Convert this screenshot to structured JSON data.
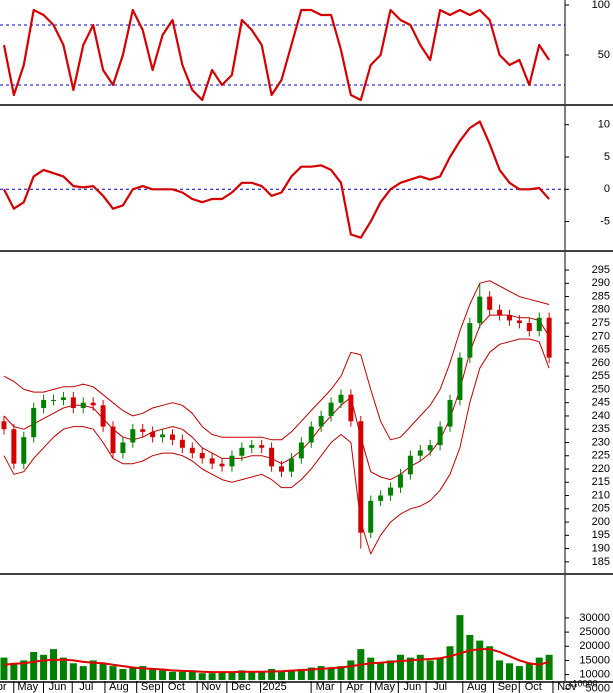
{
  "chart_data": [
    {
      "type": "line",
      "ylim": [
        0,
        100
      ],
      "yticks": [
        50,
        100
      ],
      "xlim": [
        -0.4,
        56.6
      ],
      "ref_lines": [
        80,
        20
      ],
      "ref_color": "#0000cc",
      "series": [
        {
          "color": "#d40000",
          "values": [
            60,
            10,
            40,
            95,
            90,
            80,
            60,
            15,
            60,
            80,
            35,
            20,
            50,
            95,
            75,
            35,
            70,
            85,
            40,
            15,
            5,
            35,
            20,
            30,
            85,
            75,
            60,
            10,
            25,
            60,
            95,
            95,
            90,
            90,
            55,
            10,
            5,
            40,
            50,
            95,
            85,
            80,
            60,
            45,
            95,
            90,
            95,
            90,
            95,
            85,
            50,
            40,
            45,
            20,
            60,
            45
          ]
        }
      ]
    },
    {
      "type": "line",
      "ylim": [
        -9.4,
        12.9
      ],
      "yticks": [
        10,
        5,
        0,
        -5
      ],
      "xlim": [
        -0.4,
        56.6
      ],
      "ref_lines": [
        0
      ],
      "ref_color": "#0000cc",
      "series": [
        {
          "color": "#d40000",
          "values": [
            0,
            -3,
            -2,
            2,
            3,
            2.5,
            2,
            0.5,
            0.3,
            0.5,
            -1,
            -3,
            -2.5,
            0,
            0.5,
            0,
            0,
            0,
            -0.5,
            -1.5,
            -2,
            -1.5,
            -1.5,
            -0.5,
            1,
            1,
            0.5,
            -1,
            -0.5,
            2,
            3.5,
            3.5,
            3.7,
            3,
            1,
            -7,
            -7.5,
            -5,
            -2,
            0,
            1,
            1.5,
            2,
            1.5,
            2,
            5,
            7.5,
            9.5,
            10.5,
            7,
            3,
            1,
            0,
            0,
            0.2,
            -1.5
          ]
        }
      ]
    },
    {
      "type": "candlestick",
      "ylim": [
        180.8,
        301.8
      ],
      "yticks": [
        185,
        190,
        195,
        200,
        205,
        210,
        215,
        220,
        225,
        230,
        235,
        240,
        245,
        250,
        255,
        260,
        265,
        270,
        275,
        280,
        285,
        290,
        295
      ],
      "xlim": [
        -0.4,
        56.6
      ],
      "up_color": "#008000",
      "down_color": "#d40000",
      "band_color": "#c00000",
      "open": [
        238,
        235,
        222,
        232,
        243,
        246,
        246,
        247,
        243,
        245,
        244,
        236,
        226,
        230,
        235,
        234,
        232,
        233,
        231,
        228,
        226,
        224,
        222,
        221,
        225,
        228,
        229,
        228,
        221,
        219,
        224,
        230,
        236,
        240,
        245,
        248,
        238,
        196,
        208,
        210,
        213,
        218,
        225,
        227,
        229,
        236,
        246,
        262,
        275,
        285,
        280,
        278,
        276,
        275,
        272,
        277
      ],
      "high": [
        240,
        237,
        234,
        245,
        248,
        248,
        249,
        249,
        247,
        247,
        246,
        238,
        232,
        237,
        237,
        236,
        235,
        235,
        233,
        230,
        228,
        226,
        224,
        227,
        230,
        231,
        231,
        230,
        223,
        226,
        232,
        238,
        242,
        247,
        250,
        250,
        240,
        210,
        212,
        215,
        220,
        227,
        229,
        231,
        238,
        248,
        264,
        277,
        290,
        287,
        282,
        280,
        278,
        277,
        279,
        279
      ],
      "low": [
        233,
        220,
        220,
        230,
        241,
        244,
        244,
        241,
        241,
        242,
        234,
        224,
        224,
        228,
        232,
        230,
        230,
        229,
        226,
        224,
        222,
        220,
        219,
        219,
        223,
        226,
        226,
        219,
        217,
        217,
        222,
        228,
        234,
        238,
        243,
        236,
        190,
        194,
        206,
        208,
        211,
        216,
        223,
        225,
        227,
        234,
        244,
        260,
        273,
        278,
        276,
        274,
        273,
        270,
        270,
        260
      ],
      "close": [
        235,
        222,
        232,
        243,
        246,
        246,
        247,
        243,
        245,
        244,
        236,
        226,
        230,
        235,
        234,
        232,
        233,
        231,
        228,
        226,
        224,
        222,
        221,
        225,
        228,
        229,
        228,
        221,
        219,
        224,
        230,
        236,
        240,
        245,
        248,
        238,
        196,
        208,
        210,
        213,
        218,
        225,
        227,
        229,
        236,
        246,
        262,
        275,
        285,
        280,
        278,
        276,
        275,
        272,
        277,
        262
      ],
      "bands": [
        [
          255,
          253,
          250,
          249,
          249,
          250,
          251,
          251,
          252,
          251,
          248,
          245,
          242,
          240,
          241,
          243,
          244,
          245,
          244,
          241,
          236,
          233,
          232,
          232,
          232,
          232,
          232,
          231,
          231,
          234,
          238,
          242,
          246,
          250,
          255,
          264,
          263,
          250,
          238,
          231,
          232,
          236,
          240,
          244,
          250,
          260,
          272,
          282,
          290,
          291,
          289,
          287,
          285,
          284,
          283,
          282
        ],
        [
          240,
          236,
          235,
          237,
          239,
          241,
          243,
          244,
          244,
          243,
          239,
          235,
          232,
          231,
          232,
          234,
          235,
          236,
          235,
          232,
          228,
          226,
          224,
          224,
          224,
          225,
          225,
          224,
          222,
          224,
          227,
          231,
          236,
          240,
          244,
          247,
          232,
          219,
          217,
          216,
          218,
          221,
          223,
          226,
          231,
          239,
          250,
          264,
          274,
          278,
          278,
          278,
          277,
          277,
          276,
          270
        ],
        [
          225,
          218,
          219,
          224,
          228,
          232,
          235,
          236,
          236,
          235,
          230,
          224,
          222,
          222,
          223,
          225,
          226,
          226,
          225,
          223,
          220,
          218,
          216,
          215,
          216,
          217,
          218,
          216,
          213,
          213,
          216,
          220,
          225,
          230,
          233,
          230,
          200,
          188,
          195,
          200,
          203,
          205,
          206,
          208,
          212,
          218,
          228,
          245,
          258,
          264,
          267,
          268,
          269,
          269,
          268,
          258
        ]
      ]
    },
    {
      "type": "bar",
      "ylim": [
        8100,
        44800
      ],
      "yticks": [
        30000,
        25000,
        20000,
        15000,
        10000,
        5000
      ],
      "unit_label": "x10000",
      "xlim": [
        -0.4,
        56.6
      ],
      "color": "#008000",
      "ma_color": "#e00000",
      "values": [
        16000,
        14000,
        15000,
        18000,
        17000,
        19000,
        16000,
        14000,
        13000,
        15000,
        14000,
        13000,
        12000,
        12500,
        13000,
        12000,
        11500,
        11000,
        11000,
        11500,
        10500,
        10500,
        11000,
        10800,
        11500,
        11000,
        11000,
        12000,
        11000,
        11500,
        12000,
        12500,
        13000,
        12500,
        13000,
        15000,
        19000,
        16000,
        14000,
        15000,
        17000,
        16000,
        17000,
        15000,
        16000,
        20000,
        31000,
        24000,
        22000,
        20000,
        15000,
        14000,
        13000,
        14000,
        16000,
        17000
      ],
      "ma": [
        13500,
        13800,
        14000,
        14500,
        15000,
        15200,
        15300,
        15000,
        14500,
        14200,
        14000,
        13500,
        13000,
        12500,
        12200,
        12000,
        11800,
        11500,
        11300,
        11200,
        11000,
        10900,
        10900,
        10900,
        11000,
        11000,
        11000,
        11100,
        11200,
        11400,
        11600,
        11800,
        12000,
        12300,
        12500,
        13000,
        13500,
        14000,
        14200,
        14500,
        14800,
        15000,
        15300,
        15500,
        15800,
        16500,
        17500,
        18500,
        19000,
        19000,
        18000,
        16500,
        15000,
        14000,
        13500,
        14500
      ],
      "xticks": [
        {
          "value": -0.6,
          "label": "Apr"
        },
        {
          "value": 2.4,
          "label": "May"
        },
        {
          "value": 5.4,
          "label": "Jun"
        },
        {
          "value": 8.3,
          "label": "Jul"
        },
        {
          "value": 11.6,
          "label": "Aug"
        },
        {
          "value": 14.8,
          "label": "Sep"
        },
        {
          "value": 17.4,
          "label": "Oct"
        },
        {
          "value": 20.9,
          "label": "Nov"
        },
        {
          "value": 23.9,
          "label": "Dec"
        },
        {
          "value": 27.3,
          "label": "2025"
        },
        {
          "value": 32.4,
          "label": "Mar"
        },
        {
          "value": 35.4,
          "label": "Apr"
        },
        {
          "value": 38.4,
          "label": "May"
        },
        {
          "value": 41.2,
          "label": "Jun"
        },
        {
          "value": 44,
          "label": "Jul"
        },
        {
          "value": 47.7,
          "label": "Aug"
        },
        {
          "value": 50.8,
          "label": "Sep"
        },
        {
          "value": 53.4,
          "label": "Oct"
        },
        {
          "value": 56.8,
          "label": "Nov"
        }
      ]
    }
  ]
}
